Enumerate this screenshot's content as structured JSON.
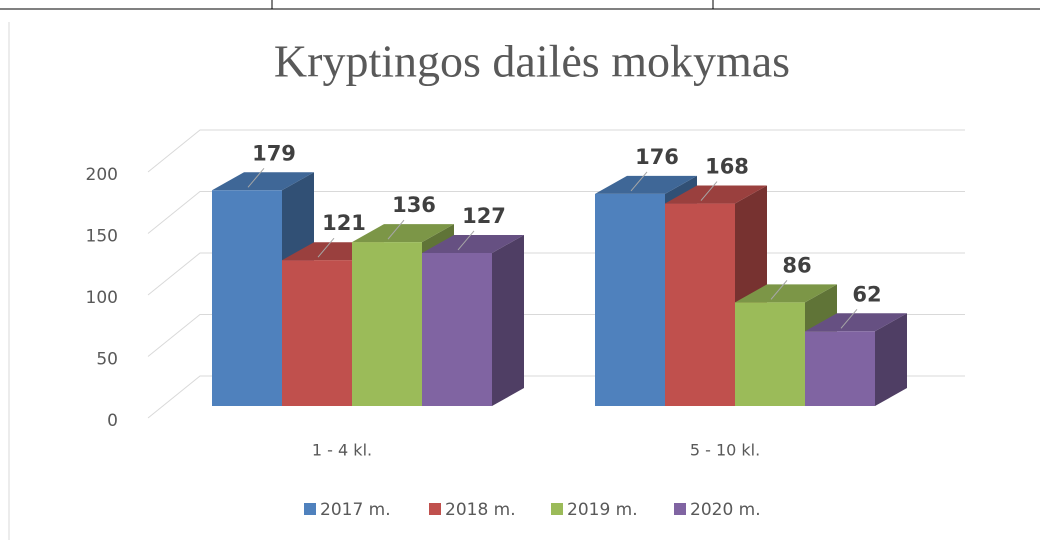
{
  "chart_data": {
    "type": "bar3d",
    "title": "Kryptingos dailės mokymas",
    "categories": [
      "1 - 4 kl.",
      "5 - 10 kl."
    ],
    "series": [
      {
        "name": "2017 m.",
        "color": "#4f81bd",
        "values": [
          179,
          176
        ]
      },
      {
        "name": "2018 m.",
        "color": "#c0504d",
        "values": [
          121,
          168
        ]
      },
      {
        "name": "2019 m.",
        "color": "#9bbb59",
        "values": [
          136,
          86
        ]
      },
      {
        "name": "2020 m.",
        "color": "#8064a2",
        "values": [
          127,
          62
        ]
      }
    ],
    "ylim": [
      0,
      200
    ],
    "yticks": [
      0,
      50,
      100,
      150,
      200
    ],
    "grid": true,
    "legend": "bottom"
  }
}
